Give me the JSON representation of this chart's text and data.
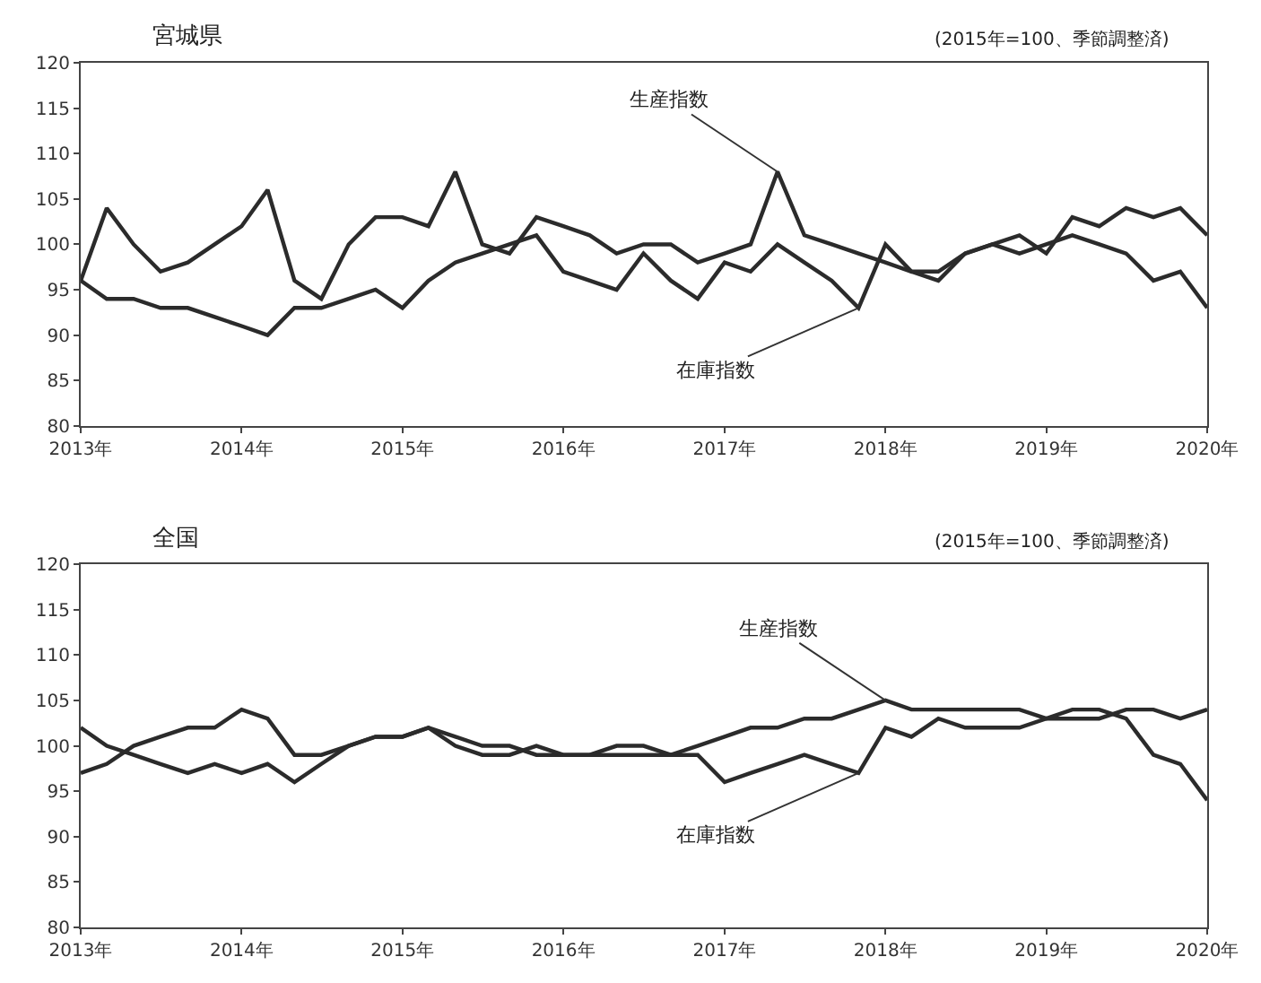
{
  "chart_data": [
    {
      "type": "line",
      "title": "宮城県",
      "subtitle": "(2015年=100、季節調整済)",
      "grid": false,
      "marker": "none",
      "line_style": "solid",
      "x": [
        "2013-01",
        "2013-03",
        "2013-05",
        "2013-07",
        "2013-09",
        "2013-11",
        "2014-01",
        "2014-03",
        "2014-05",
        "2014-07",
        "2014-09",
        "2014-11",
        "2015-01",
        "2015-03",
        "2015-05",
        "2015-07",
        "2015-09",
        "2015-11",
        "2016-01",
        "2016-03",
        "2016-05",
        "2016-07",
        "2016-09",
        "2016-11",
        "2017-01",
        "2017-03",
        "2017-05",
        "2017-07",
        "2017-09",
        "2017-11",
        "2018-01",
        "2018-03",
        "2018-05",
        "2018-07",
        "2018-09",
        "2018-11",
        "2019-01",
        "2019-03",
        "2019-05",
        "2019-07",
        "2019-09",
        "2019-11",
        "2020-01"
      ],
      "series": [
        {
          "color": "#2b2b2b",
          "values": [
            96,
            104,
            100,
            97,
            98,
            100,
            102,
            106,
            96,
            94,
            100,
            103,
            103,
            102,
            108,
            100,
            99,
            103,
            102,
            101,
            99,
            100,
            100,
            98,
            99,
            100,
            108,
            101,
            100,
            99,
            98,
            97,
            96,
            99,
            100,
            101,
            99,
            103,
            102,
            104,
            103,
            104,
            101
          ]
        },
        {
          "color": "#2b2b2b",
          "values": [
            96,
            94,
            94,
            93,
            93,
            92,
            91,
            90,
            93,
            93,
            94,
            95,
            93,
            96,
            98,
            99,
            100,
            101,
            97,
            96,
            95,
            99,
            96,
            94,
            98,
            97,
            100,
            98,
            96,
            93,
            100,
            97,
            97,
            99,
            100,
            99,
            100,
            101,
            100,
            99,
            96,
            97,
            93
          ]
        }
      ],
      "xlim": [
        "2013-01",
        "2020-01"
      ],
      "xticks": [
        {
          "value": "2013-01",
          "label": "2013年"
        },
        {
          "value": "2014-01",
          "label": "2014年"
        },
        {
          "value": "2015-01",
          "label": "2015年"
        },
        {
          "value": "2016-01",
          "label": "2016年"
        },
        {
          "value": "2017-01",
          "label": "2017年"
        },
        {
          "value": "2018-01",
          "label": "2018年"
        },
        {
          "value": "2019-01",
          "label": "2019年"
        },
        {
          "value": "2020-01",
          "label": "2020年"
        }
      ],
      "ylim": [
        80,
        120
      ],
      "yticks": [
        80,
        85,
        90,
        95,
        100,
        105,
        110,
        115,
        120
      ],
      "annotations": [
        {
          "text": "生産指数",
          "x": "2017-05",
          "y": 108
        },
        {
          "text": "在庫指数",
          "x": "2017-11",
          "y": 93
        }
      ]
    },
    {
      "type": "line",
      "title": "全国",
      "subtitle": "(2015年=100、季節調整済)",
      "grid": false,
      "marker": "none",
      "line_style": "solid",
      "x": [
        "2013-01",
        "2013-03",
        "2013-05",
        "2013-07",
        "2013-09",
        "2013-11",
        "2014-01",
        "2014-03",
        "2014-05",
        "2014-07",
        "2014-09",
        "2014-11",
        "2015-01",
        "2015-03",
        "2015-05",
        "2015-07",
        "2015-09",
        "2015-11",
        "2016-01",
        "2016-03",
        "2016-05",
        "2016-07",
        "2016-09",
        "2016-11",
        "2017-01",
        "2017-03",
        "2017-05",
        "2017-07",
        "2017-09",
        "2017-11",
        "2018-01",
        "2018-03",
        "2018-05",
        "2018-07",
        "2018-09",
        "2018-11",
        "2019-01",
        "2019-03",
        "2019-05",
        "2019-07",
        "2019-09",
        "2019-11",
        "2020-01"
      ],
      "series": [
        {
          "color": "#2b2b2b",
          "values": [
            97,
            98,
            100,
            101,
            102,
            102,
            104,
            103,
            99,
            99,
            100,
            101,
            101,
            102,
            101,
            100,
            100,
            99,
            99,
            99,
            100,
            100,
            99,
            100,
            101,
            102,
            102,
            103,
            103,
            104,
            105,
            104,
            104,
            104,
            104,
            104,
            103,
            104,
            104,
            103,
            99,
            98,
            94
          ]
        },
        {
          "color": "#2b2b2b",
          "values": [
            102,
            100,
            99,
            98,
            97,
            98,
            97,
            98,
            96,
            98,
            100,
            101,
            101,
            102,
            100,
            99,
            99,
            100,
            99,
            99,
            99,
            99,
            99,
            99,
            96,
            97,
            98,
            99,
            98,
            97,
            102,
            101,
            103,
            102,
            102,
            102,
            103,
            103,
            103,
            104,
            104,
            103,
            104
          ]
        }
      ],
      "xlim": [
        "2013-01",
        "2020-01"
      ],
      "xticks": [
        {
          "value": "2013-01",
          "label": "2013年"
        },
        {
          "value": "2014-01",
          "label": "2014年"
        },
        {
          "value": "2015-01",
          "label": "2015年"
        },
        {
          "value": "2016-01",
          "label": "2016年"
        },
        {
          "value": "2017-01",
          "label": "2017年"
        },
        {
          "value": "2018-01",
          "label": "2018年"
        },
        {
          "value": "2019-01",
          "label": "2019年"
        },
        {
          "value": "2020-01",
          "label": "2020年"
        }
      ],
      "ylim": [
        80,
        120
      ],
      "yticks": [
        80,
        85,
        90,
        95,
        100,
        105,
        110,
        115,
        120
      ],
      "annotations": [
        {
          "text": "生産指数",
          "x": "2018-01",
          "y": 105
        },
        {
          "text": "在庫指数",
          "x": "2017-11",
          "y": 97
        }
      ]
    }
  ]
}
